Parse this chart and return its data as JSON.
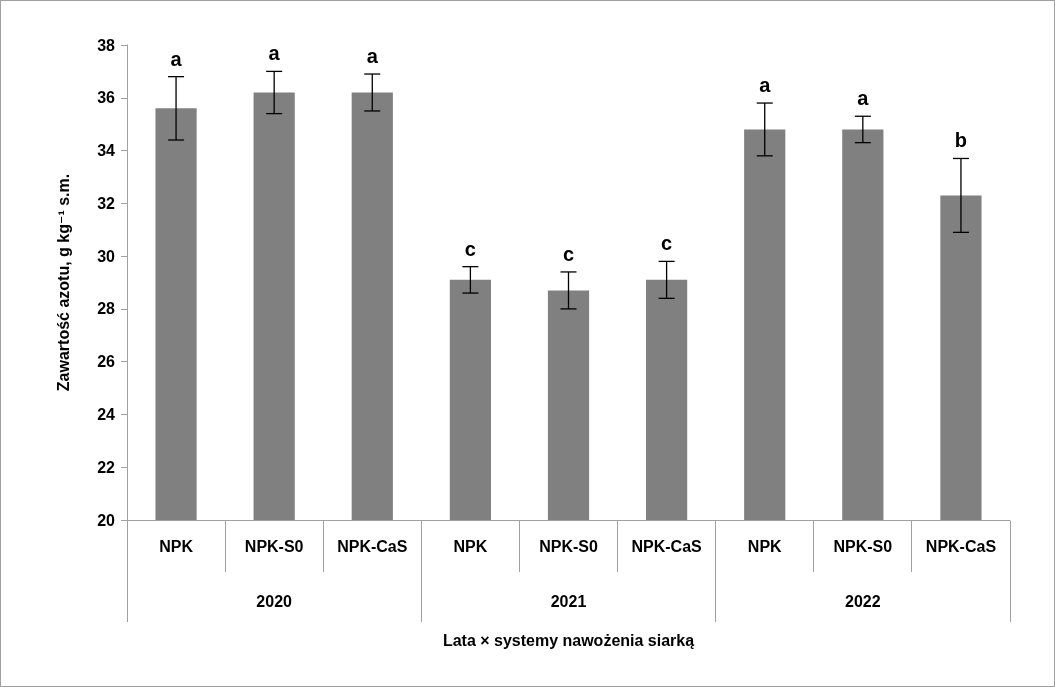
{
  "chart_data": {
    "type": "bar",
    "xlabel": "Lata × systemy nawożenia siarką",
    "ylabel": "Zawartość azotu, g kg⁻¹ s.m.",
    "categories": [
      "NPK",
      "NPK-S0",
      "NPK-CaS",
      "NPK",
      "NPK-S0",
      "NPK-CaS",
      "NPK",
      "NPK-S0",
      "NPK-CaS"
    ],
    "annotations": [
      "2020",
      "2021",
      "2022"
    ],
    "values": [
      35.6,
      36.2,
      36.2,
      29.1,
      28.7,
      29.1,
      34.8,
      34.8,
      32.3
    ],
    "errors": [
      1.2,
      0.8,
      0.7,
      0.5,
      0.7,
      0.7,
      1.0,
      0.5,
      1.4
    ],
    "value_labels": [
      "a",
      "a",
      "a",
      "c",
      "c",
      "c",
      "a",
      "a",
      "b"
    ],
    "color": "#808080",
    "ylim": [
      20,
      38
    ],
    "yticks": [
      20,
      22,
      24,
      26,
      28,
      30,
      32,
      34,
      36,
      38
    ],
    "grid": false
  }
}
